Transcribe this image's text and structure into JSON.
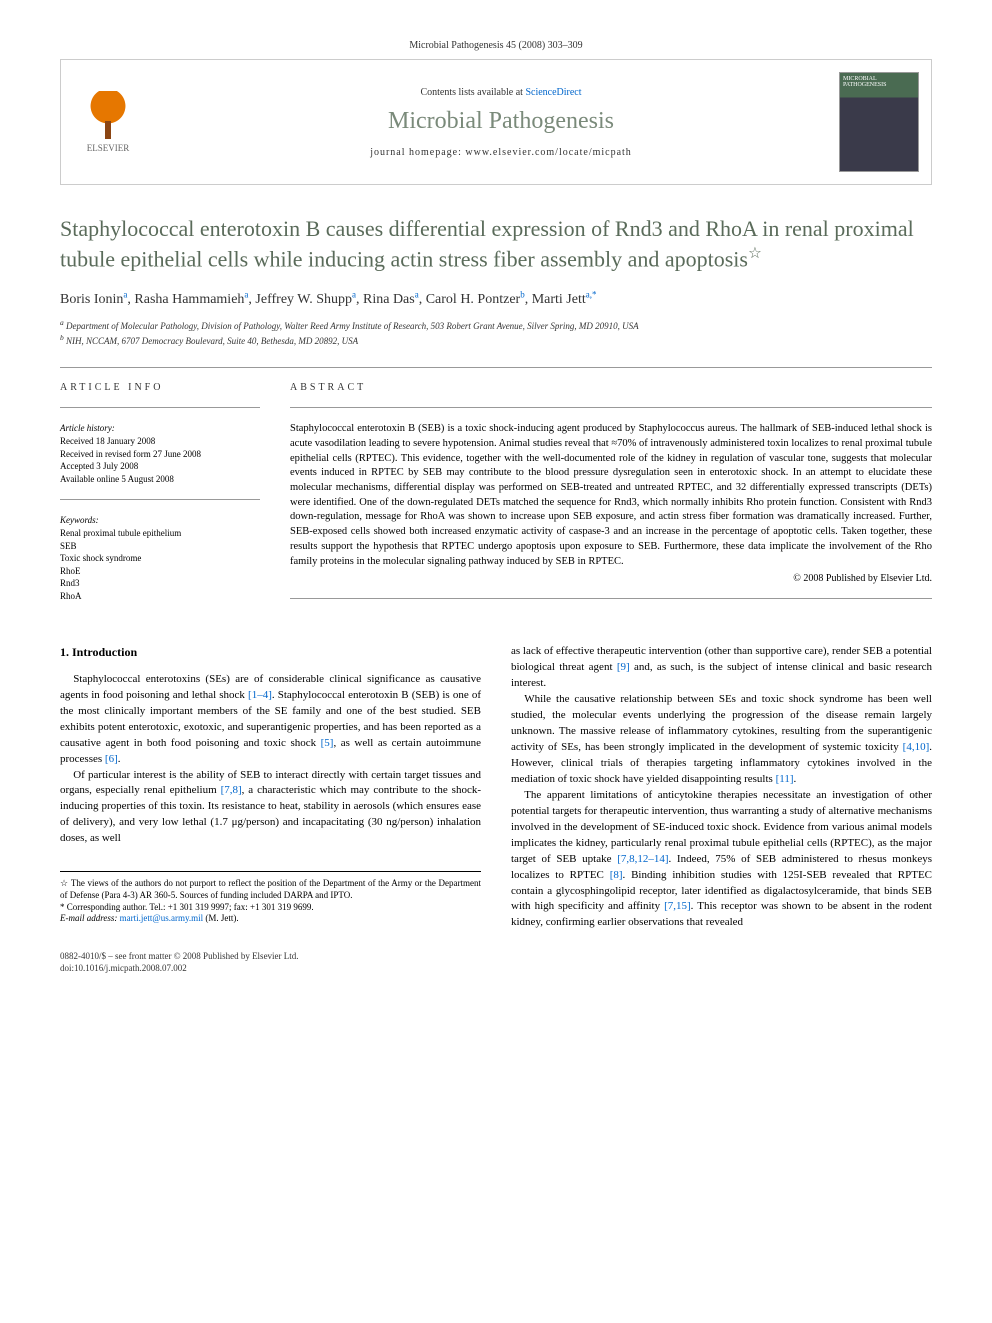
{
  "citation": "Microbial Pathogenesis 45 (2008) 303–309",
  "publisher": {
    "logo_label": "ELSEVIER",
    "contents_prefix": "Contents lists available at ",
    "contents_link": "ScienceDirect",
    "journal_name": "Microbial Pathogenesis",
    "homepage_prefix": "journal homepage: ",
    "homepage_url": "www.elsevier.com/locate/micpath",
    "cover_label": "MICROBIAL PATHOGENESIS"
  },
  "article": {
    "title": "Staphylococcal enterotoxin B causes differential expression of Rnd3 and RhoA in renal proximal tubule epithelial cells while inducing actin stress fiber assembly and apoptosis",
    "title_note_marker": "☆",
    "authors": [
      {
        "name": "Boris Ionin",
        "aff": "a"
      },
      {
        "name": "Rasha Hammamieh",
        "aff": "a"
      },
      {
        "name": "Jeffrey W. Shupp",
        "aff": "a"
      },
      {
        "name": "Rina Das",
        "aff": "a"
      },
      {
        "name": "Carol H. Pontzer",
        "aff": "b"
      },
      {
        "name": "Marti Jett",
        "aff": "a,*"
      }
    ],
    "affiliations": [
      {
        "marker": "a",
        "text": "Department of Molecular Pathology, Division of Pathology, Walter Reed Army Institute of Research, 503 Robert Grant Avenue, Silver Spring, MD 20910, USA"
      },
      {
        "marker": "b",
        "text": "NIH, NCCAM, 6707 Democracy Boulevard, Suite 40, Bethesda, MD 20892, USA"
      }
    ]
  },
  "info": {
    "label": "ARTICLE INFO",
    "history_head": "Article history:",
    "history": [
      "Received 18 January 2008",
      "Received in revised form 27 June 2008",
      "Accepted 3 July 2008",
      "Available online 5 August 2008"
    ],
    "keywords_head": "Keywords:",
    "keywords": [
      "Renal proximal tubule epithelium",
      "SEB",
      "Toxic shock syndrome",
      "RhoE",
      "Rnd3",
      "RhoA"
    ]
  },
  "abstract": {
    "label": "ABSTRACT",
    "text": "Staphylococcal enterotoxin B (SEB) is a toxic shock-inducing agent produced by Staphylococcus aureus. The hallmark of SEB-induced lethal shock is acute vasodilation leading to severe hypotension. Animal studies reveal that ≈70% of intravenously administered toxin localizes to renal proximal tubule epithelial cells (RPTEC). This evidence, together with the well-documented role of the kidney in regulation of vascular tone, suggests that molecular events induced in RPTEC by SEB may contribute to the blood pressure dysregulation seen in enterotoxic shock. In an attempt to elucidate these molecular mechanisms, differential display was performed on SEB-treated and untreated RPTEC, and 32 differentially expressed transcripts (DETs) were identified. One of the down-regulated DETs matched the sequence for Rnd3, which normally inhibits Rho protein function. Consistent with Rnd3 down-regulation, message for RhoA was shown to increase upon SEB exposure, and actin stress fiber formation was dramatically increased. Further, SEB-exposed cells showed both increased enzymatic activity of caspase-3 and an increase in the percentage of apoptotic cells. Taken together, these results support the hypothesis that RPTEC undergo apoptosis upon exposure to SEB. Furthermore, these data implicate the involvement of the Rho family proteins in the molecular signaling pathway induced by SEB in RPTEC.",
    "copyright": "© 2008 Published by Elsevier Ltd."
  },
  "body": {
    "intro_heading": "1. Introduction",
    "p1": "Staphylococcal enterotoxins (SEs) are of considerable clinical significance as causative agents in food poisoning and lethal shock [1–4]. Staphylococcal enterotoxin B (SEB) is one of the most clinically important members of the SE family and one of the best studied. SEB exhibits potent enterotoxic, exotoxic, and superantigenic properties, and has been reported as a causative agent in both food poisoning and toxic shock [5], as well as certain autoimmune processes [6].",
    "p2": "Of particular interest is the ability of SEB to interact directly with certain target tissues and organs, especially renal epithelium [7,8], a characteristic which may contribute to the shock-inducing properties of this toxin. Its resistance to heat, stability in aerosols (which ensures ease of delivery), and very low lethal (1.7 μg/person) and incapacitating (30 ng/person) inhalation doses, as well",
    "p3": "as lack of effective therapeutic intervention (other than supportive care), render SEB a potential biological threat agent [9] and, as such, is the subject of intense clinical and basic research interest.",
    "p4": "While the causative relationship between SEs and toxic shock syndrome has been well studied, the molecular events underlying the progression of the disease remain largely unknown. The massive release of inflammatory cytokines, resulting from the superantigenic activity of SEs, has been strongly implicated in the development of systemic toxicity [4,10]. However, clinical trials of therapies targeting inflammatory cytokines involved in the mediation of toxic shock have yielded disappointing results [11].",
    "p5": "The apparent limitations of anticytokine therapies necessitate an investigation of other potential targets for therapeutic intervention, thus warranting a study of alternative mechanisms involved in the development of SE-induced toxic shock. Evidence from various animal models implicates the kidney, particularly renal proximal tubule epithelial cells (RPTEC), as the major target of SEB uptake [7,8,12–14]. Indeed, 75% of SEB administered to rhesus monkeys localizes to RPTEC [8]. Binding inhibition studies with 125I-SEB revealed that RPTEC contain a glycosphingolipid receptor, later identified as digalactosylceramide, that binds SEB with high specificity and affinity [7,15]. This receptor was shown to be absent in the rodent kidney, confirming earlier observations that revealed"
  },
  "footnotes": {
    "star": "☆ The views of the authors do not purport to reflect the position of the Department of the Army or the Department of Defense (Para 4-3) AR 360-5. Sources of funding included DARPA and IPTO.",
    "corr_label": "* Corresponding author. Tel.: +1 301 319 9997; fax: +1 301 319 9699.",
    "email_label": "E-mail address:",
    "email": "marti.jett@us.army.mil",
    "email_name": "(M. Jett)."
  },
  "footer": {
    "line1": "0882-4010/$ – see front matter © 2008 Published by Elsevier Ltd.",
    "line2": "doi:10.1016/j.micpath.2008.07.002"
  },
  "colors": {
    "title_color": "#5a6b5a",
    "journal_color": "#7a8a7a",
    "link_color": "#0066cc",
    "border_color": "#cccccc"
  },
  "typography": {
    "body_fontsize_pt": 11,
    "title_fontsize_pt": 22,
    "journal_fontsize_pt": 24,
    "abstract_fontsize_pt": 10.5,
    "footnote_fontsize_pt": 9
  }
}
